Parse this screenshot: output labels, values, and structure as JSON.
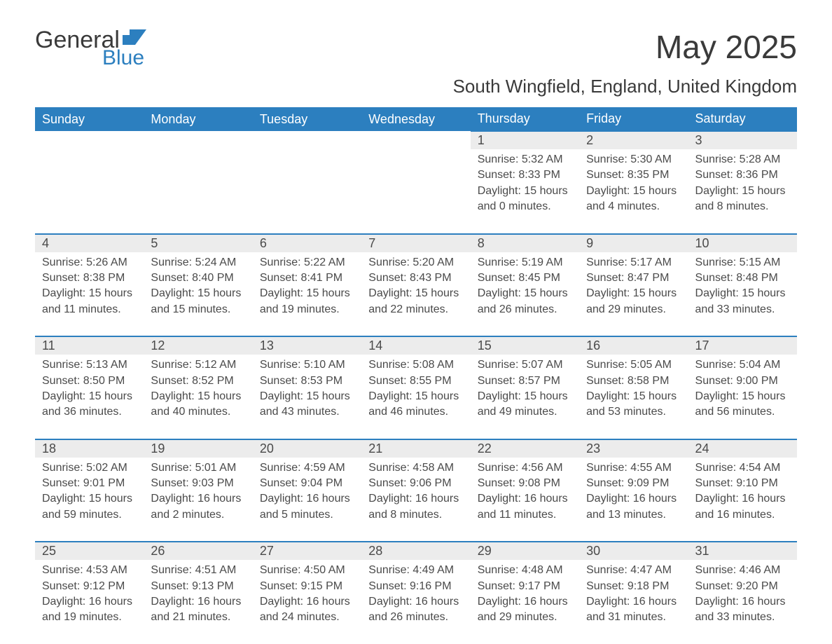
{
  "logo": {
    "general": "General",
    "blue": "Blue",
    "flag_color": "#2c7fbf"
  },
  "title": "May 2025",
  "location": "South Wingfield, England, United Kingdom",
  "colors": {
    "header_bg": "#2c7fbf",
    "header_text": "#ffffff",
    "daynum_bg": "#ececec",
    "border_top": "#2c7fbf",
    "text": "#4a4a4a",
    "page_bg": "#ffffff"
  },
  "typography": {
    "title_fontsize": 46,
    "location_fontsize": 26,
    "header_fontsize": 18,
    "daynum_fontsize": 18,
    "detail_fontsize": 16
  },
  "days_of_week": [
    "Sunday",
    "Monday",
    "Tuesday",
    "Wednesday",
    "Thursday",
    "Friday",
    "Saturday"
  ],
  "weeks": [
    [
      null,
      null,
      null,
      null,
      {
        "n": "1",
        "sunrise": "5:32 AM",
        "sunset": "8:33 PM",
        "daylight": "15 hours and 0 minutes."
      },
      {
        "n": "2",
        "sunrise": "5:30 AM",
        "sunset": "8:35 PM",
        "daylight": "15 hours and 4 minutes."
      },
      {
        "n": "3",
        "sunrise": "5:28 AM",
        "sunset": "8:36 PM",
        "daylight": "15 hours and 8 minutes."
      }
    ],
    [
      {
        "n": "4",
        "sunrise": "5:26 AM",
        "sunset": "8:38 PM",
        "daylight": "15 hours and 11 minutes."
      },
      {
        "n": "5",
        "sunrise": "5:24 AM",
        "sunset": "8:40 PM",
        "daylight": "15 hours and 15 minutes."
      },
      {
        "n": "6",
        "sunrise": "5:22 AM",
        "sunset": "8:41 PM",
        "daylight": "15 hours and 19 minutes."
      },
      {
        "n": "7",
        "sunrise": "5:20 AM",
        "sunset": "8:43 PM",
        "daylight": "15 hours and 22 minutes."
      },
      {
        "n": "8",
        "sunrise": "5:19 AM",
        "sunset": "8:45 PM",
        "daylight": "15 hours and 26 minutes."
      },
      {
        "n": "9",
        "sunrise": "5:17 AM",
        "sunset": "8:47 PM",
        "daylight": "15 hours and 29 minutes."
      },
      {
        "n": "10",
        "sunrise": "5:15 AM",
        "sunset": "8:48 PM",
        "daylight": "15 hours and 33 minutes."
      }
    ],
    [
      {
        "n": "11",
        "sunrise": "5:13 AM",
        "sunset": "8:50 PM",
        "daylight": "15 hours and 36 minutes."
      },
      {
        "n": "12",
        "sunrise": "5:12 AM",
        "sunset": "8:52 PM",
        "daylight": "15 hours and 40 minutes."
      },
      {
        "n": "13",
        "sunrise": "5:10 AM",
        "sunset": "8:53 PM",
        "daylight": "15 hours and 43 minutes."
      },
      {
        "n": "14",
        "sunrise": "5:08 AM",
        "sunset": "8:55 PM",
        "daylight": "15 hours and 46 minutes."
      },
      {
        "n": "15",
        "sunrise": "5:07 AM",
        "sunset": "8:57 PM",
        "daylight": "15 hours and 49 minutes."
      },
      {
        "n": "16",
        "sunrise": "5:05 AM",
        "sunset": "8:58 PM",
        "daylight": "15 hours and 53 minutes."
      },
      {
        "n": "17",
        "sunrise": "5:04 AM",
        "sunset": "9:00 PM",
        "daylight": "15 hours and 56 minutes."
      }
    ],
    [
      {
        "n": "18",
        "sunrise": "5:02 AM",
        "sunset": "9:01 PM",
        "daylight": "15 hours and 59 minutes."
      },
      {
        "n": "19",
        "sunrise": "5:01 AM",
        "sunset": "9:03 PM",
        "daylight": "16 hours and 2 minutes."
      },
      {
        "n": "20",
        "sunrise": "4:59 AM",
        "sunset": "9:04 PM",
        "daylight": "16 hours and 5 minutes."
      },
      {
        "n": "21",
        "sunrise": "4:58 AM",
        "sunset": "9:06 PM",
        "daylight": "16 hours and 8 minutes."
      },
      {
        "n": "22",
        "sunrise": "4:56 AM",
        "sunset": "9:08 PM",
        "daylight": "16 hours and 11 minutes."
      },
      {
        "n": "23",
        "sunrise": "4:55 AM",
        "sunset": "9:09 PM",
        "daylight": "16 hours and 13 minutes."
      },
      {
        "n": "24",
        "sunrise": "4:54 AM",
        "sunset": "9:10 PM",
        "daylight": "16 hours and 16 minutes."
      }
    ],
    [
      {
        "n": "25",
        "sunrise": "4:53 AM",
        "sunset": "9:12 PM",
        "daylight": "16 hours and 19 minutes."
      },
      {
        "n": "26",
        "sunrise": "4:51 AM",
        "sunset": "9:13 PM",
        "daylight": "16 hours and 21 minutes."
      },
      {
        "n": "27",
        "sunrise": "4:50 AM",
        "sunset": "9:15 PM",
        "daylight": "16 hours and 24 minutes."
      },
      {
        "n": "28",
        "sunrise": "4:49 AM",
        "sunset": "9:16 PM",
        "daylight": "16 hours and 26 minutes."
      },
      {
        "n": "29",
        "sunrise": "4:48 AM",
        "sunset": "9:17 PM",
        "daylight": "16 hours and 29 minutes."
      },
      {
        "n": "30",
        "sunrise": "4:47 AM",
        "sunset": "9:18 PM",
        "daylight": "16 hours and 31 minutes."
      },
      {
        "n": "31",
        "sunrise": "4:46 AM",
        "sunset": "9:20 PM",
        "daylight": "16 hours and 33 minutes."
      }
    ]
  ],
  "labels": {
    "sunrise": "Sunrise:",
    "sunset": "Sunset:",
    "daylight": "Daylight:"
  }
}
